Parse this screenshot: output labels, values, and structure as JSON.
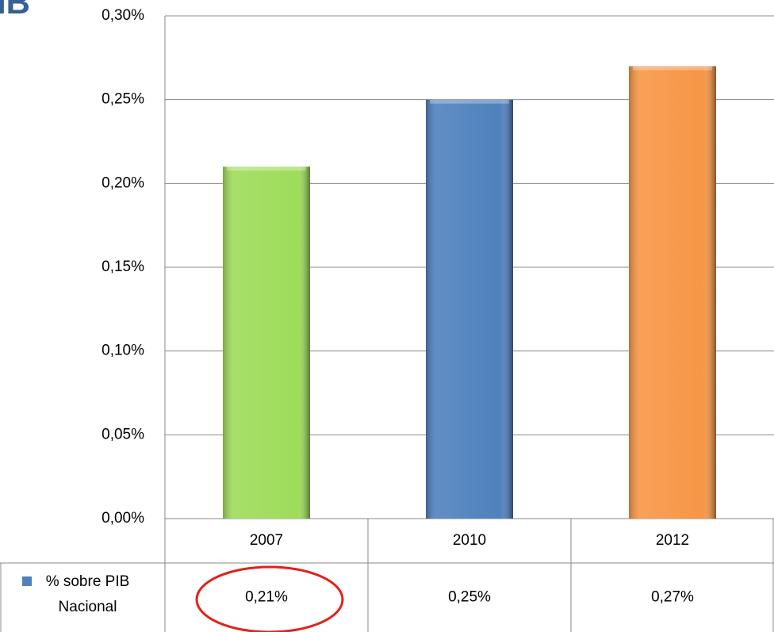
{
  "chart_data": {
    "type": "bar",
    "title": "IB",
    "categories": [
      "2007",
      "2010",
      "2012"
    ],
    "series": [
      {
        "name": "% sobre PIB Nacional",
        "color": "#4f81bd",
        "values": [
          0.21,
          0.25,
          0.27
        ],
        "value_labels": [
          "0,21%",
          "0,25%",
          "0,27%"
        ]
      }
    ],
    "colors": [
      "#9edc5a",
      "#4f81bd",
      "#f79646"
    ],
    "ylim": [
      0,
      0.3
    ],
    "yticks": [
      {
        "value": 0,
        "label": "0,00%"
      },
      {
        "value": 0.05,
        "label": "0,05%"
      },
      {
        "value": 0.1,
        "label": "0,10%"
      },
      {
        "value": 0.15,
        "label": "0,15%"
      },
      {
        "value": 0.2,
        "label": "0,20%"
      },
      {
        "value": 0.25,
        "label": "0,25%"
      },
      {
        "value": 0.3,
        "label": "0,30%"
      }
    ],
    "grid": true,
    "legend": "bottom-left"
  }
}
